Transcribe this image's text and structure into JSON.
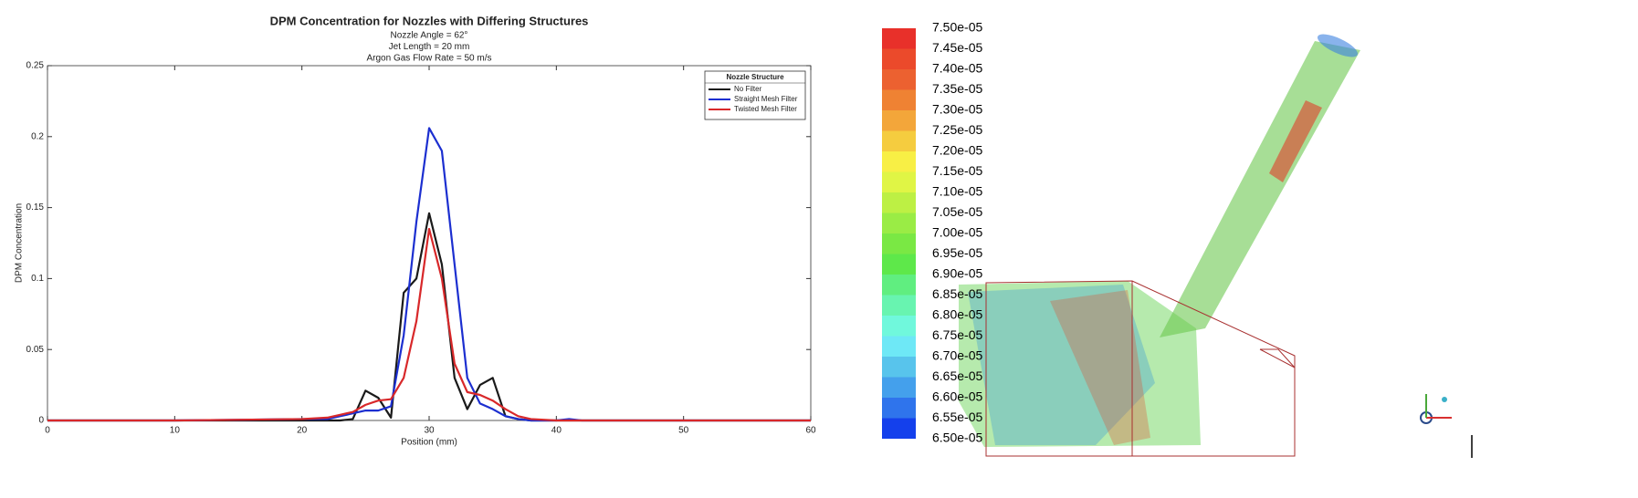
{
  "chart_data": [
    {
      "type": "line",
      "title": "DPM Concentration for Nozzles with Differing Structures",
      "subtitle": [
        "Nozzle Angle = 62°",
        "Jet Length = 20 mm",
        "Argon Gas Flow Rate = 50 m/s"
      ],
      "x_label": "Position (mm)",
      "y_label": "DPM Concentration",
      "x": [
        0,
        10,
        20,
        22,
        23,
        24,
        25,
        26,
        27,
        28,
        29,
        30,
        31,
        32,
        33,
        34,
        35,
        36,
        37,
        38,
        40,
        41,
        42,
        50,
        60
      ],
      "series": [
        {
          "name": "No Filter",
          "color": "#1a1a1a",
          "values": [
            0,
            0,
            0,
            0,
            0,
            0.001,
            0.021,
            0.016,
            0.002,
            0.09,
            0.1,
            0.146,
            0.11,
            0.03,
            0.008,
            0.025,
            0.03,
            0.003,
            0.001,
            0,
            0,
            0,
            0,
            0,
            0
          ]
        },
        {
          "name": "Straight Mesh Filter",
          "color": "#1c2fd0",
          "values": [
            0,
            0,
            0.001,
            0.001,
            0.003,
            0.005,
            0.007,
            0.007,
            0.01,
            0.06,
            0.14,
            0.206,
            0.19,
            0.11,
            0.03,
            0.012,
            0.008,
            0.003,
            0.001,
            0,
            0,
            0.001,
            0,
            0,
            0
          ]
        },
        {
          "name": "Twisted Mesh Filter",
          "color": "#d8282a",
          "values": [
            0,
            0,
            0.001,
            0.002,
            0.004,
            0.006,
            0.011,
            0.014,
            0.015,
            0.03,
            0.07,
            0.135,
            0.1,
            0.04,
            0.02,
            0.018,
            0.014,
            0.008,
            0.003,
            0.001,
            0,
            0,
            0,
            0,
            0
          ]
        }
      ],
      "legend_title": "Nozzle Structure",
      "legend": "northeast",
      "xlim": [
        0,
        60
      ],
      "xticks": [
        0,
        10,
        20,
        30,
        40,
        50,
        60
      ],
      "ylim": [
        0,
        0.25
      ],
      "yticks": [
        0,
        0.05,
        0.1,
        0.15,
        0.2,
        0.25
      ]
    },
    {
      "type": "colorbar",
      "lim": [
        6.5e-05,
        7.5e-05
      ],
      "ticks": [
        {
          "value": 7.5e-05,
          "label": "7.50e-05"
        },
        {
          "value": 7.45e-05,
          "label": "7.45e-05"
        },
        {
          "value": 7.4e-05,
          "label": "7.40e-05"
        },
        {
          "value": 7.35e-05,
          "label": "7.35e-05"
        },
        {
          "value": 7.3e-05,
          "label": "7.30e-05"
        },
        {
          "value": 7.25e-05,
          "label": "7.25e-05"
        },
        {
          "value": 7.2e-05,
          "label": "7.20e-05"
        },
        {
          "value": 7.15e-05,
          "label": "7.15e-05"
        },
        {
          "value": 7.1e-05,
          "label": "7.10e-05"
        },
        {
          "value": 7.05e-05,
          "label": "7.05e-05"
        },
        {
          "value": 7e-05,
          "label": "7.00e-05"
        },
        {
          "value": 6.95e-05,
          "label": "6.95e-05"
        },
        {
          "value": 6.9e-05,
          "label": "6.90e-05"
        },
        {
          "value": 6.85e-05,
          "label": "6.85e-05"
        },
        {
          "value": 6.8e-05,
          "label": "6.80e-05"
        },
        {
          "value": 6.75e-05,
          "label": "6.75e-05"
        },
        {
          "value": 6.7e-05,
          "label": "6.70e-05"
        },
        {
          "value": 6.65e-05,
          "label": "6.65e-05"
        },
        {
          "value": 6.6e-05,
          "label": "6.60e-05"
        },
        {
          "value": 6.55e-05,
          "label": "6.55e-05"
        },
        {
          "value": 6.5e-05,
          "label": "6.50e-05"
        }
      ],
      "colors": [
        "#e8302a",
        "#eb4a2b",
        "#ec6130",
        "#ef8233",
        "#f3a63a",
        "#f5cc3f",
        "#f8ef45",
        "#e0f545",
        "#bdf044",
        "#9aec45",
        "#7ae844",
        "#5ee84a",
        "#60ee80",
        "#68f4b0",
        "#70f8dc",
        "#6ee8f6",
        "#58c4ec",
        "#44a0ec",
        "#2f74ec",
        "#1440ec"
      ]
    }
  ]
}
